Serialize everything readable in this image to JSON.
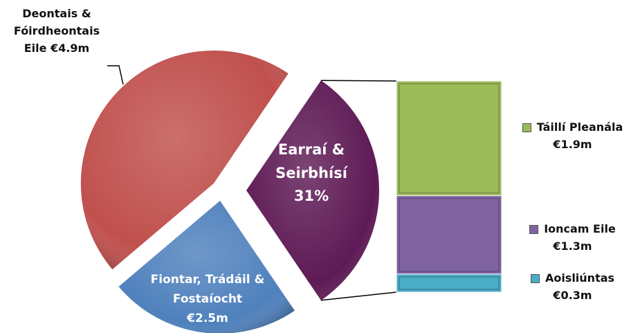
{
  "chart_data": {
    "type": "pie-of-bar",
    "categories": [
      "Deontais & Fóirdheontais Eile",
      "Fiontar, Trádáil & Fostaíocht"
    ],
    "values": [
      4.9,
      2.5
    ],
    "value_labels": [
      "€4.9m",
      "€2.5m"
    ],
    "colors": [
      "#c0504d",
      "#4f81bd"
    ],
    "split": {
      "name": "Earraí & Seirbhísí",
      "value": 31,
      "value_label": "31%",
      "color": "#5e1a55",
      "categories": [
        "Táillí Pleanála",
        "Ioncam Eile",
        "Aoisliúntas"
      ],
      "values": [
        1.9,
        1.3,
        0.3
      ],
      "value_labels": [
        "€1.9m",
        "€1.3m",
        "€0.3m"
      ],
      "colors": [
        "#9bbb59",
        "#8064a2",
        "#4bacc6"
      ]
    }
  }
}
